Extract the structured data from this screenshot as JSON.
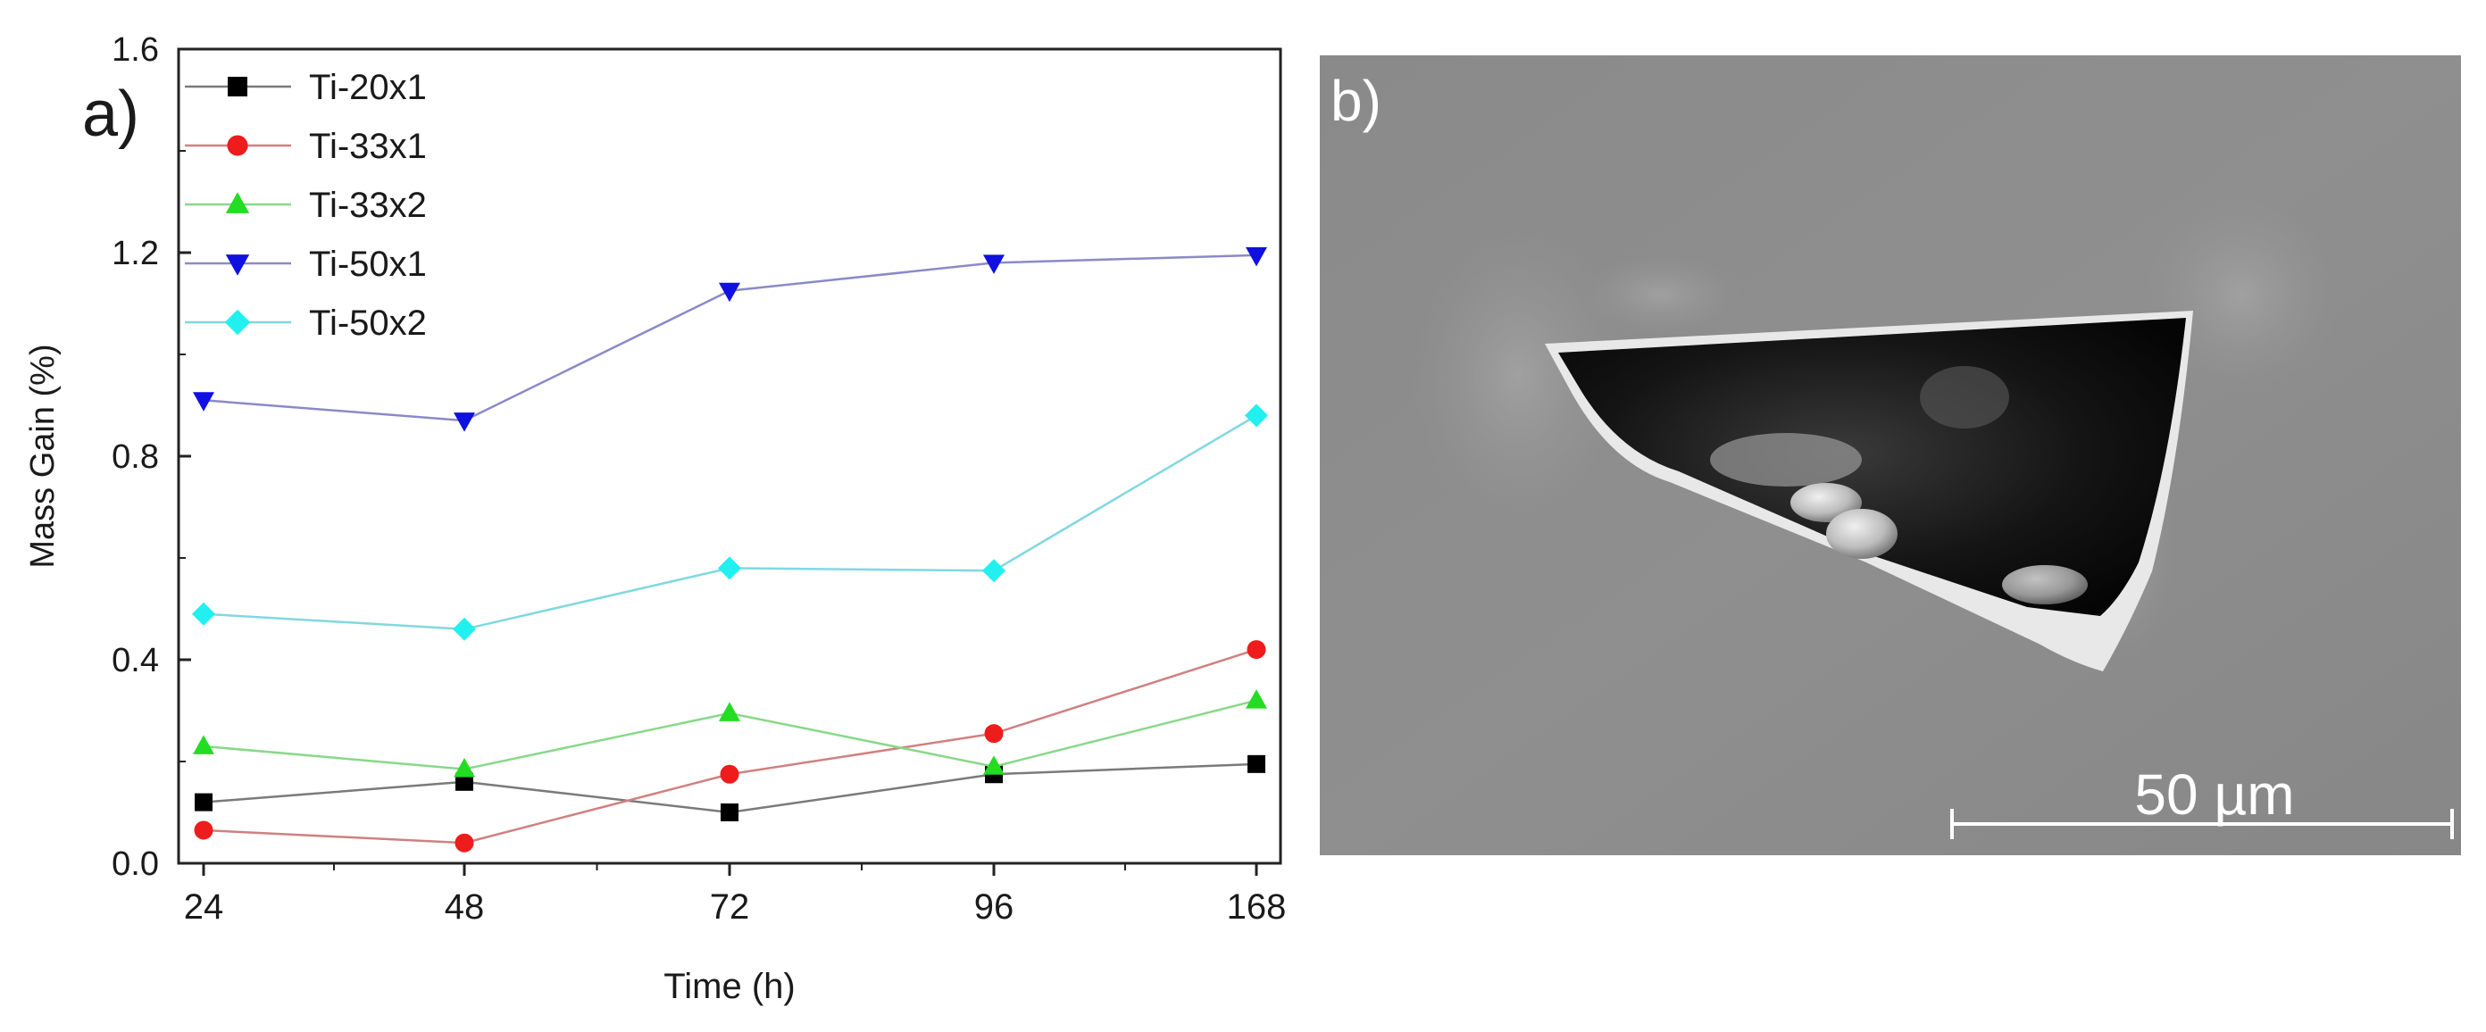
{
  "panel_a_label": "a)",
  "panel_b_label": "b)",
  "chart_data": {
    "type": "line",
    "xlabel": "Time (h)",
    "ylabel": "Mass Gain (%)",
    "categories": [
      "24",
      "48",
      "72",
      "96",
      "168"
    ],
    "ylim": [
      0.0,
      1.6
    ],
    "yticks": [
      "0.0",
      "0.4",
      "0.8",
      "1.2",
      "1.6"
    ],
    "legend_position": "top-left",
    "series": [
      {
        "name": "Ti-20x1",
        "marker": "square",
        "marker_color": "#000000",
        "line_color": "#7a7a7a",
        "values": [
          0.12,
          0.16,
          0.1,
          0.175,
          0.195
        ]
      },
      {
        "name": "Ti-33x1",
        "marker": "circle",
        "marker_color": "#ee1c1c",
        "line_color": "#d08080",
        "values": [
          0.065,
          0.04,
          0.175,
          0.255,
          0.42
        ]
      },
      {
        "name": "Ti-33x2",
        "marker": "triangle-up",
        "marker_color": "#22dd22",
        "line_color": "#88d888",
        "values": [
          0.23,
          0.185,
          0.295,
          0.19,
          0.32
        ]
      },
      {
        "name": "Ti-50x1",
        "marker": "triangle-down",
        "marker_color": "#1010e0",
        "line_color": "#8a8ac8",
        "values": [
          0.91,
          0.87,
          1.125,
          1.18,
          1.195
        ]
      },
      {
        "name": "Ti-50x2",
        "marker": "diamond",
        "marker_color": "#22f0f0",
        "line_color": "#80d8e0",
        "values": [
          0.49,
          0.46,
          0.58,
          0.575,
          0.88
        ]
      }
    ]
  },
  "sem_image": {
    "scale_bar_label": "50 µm",
    "background_color": "#8c8c8c"
  }
}
